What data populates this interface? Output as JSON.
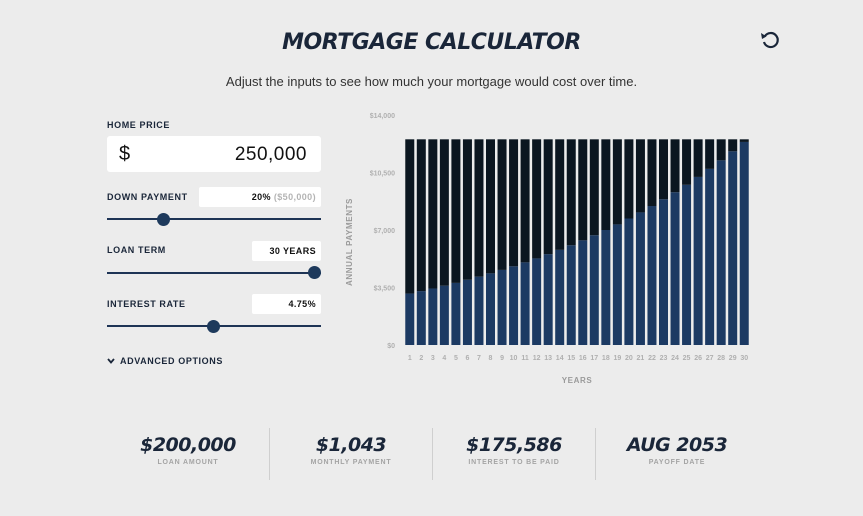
{
  "header": {
    "title": "MORTGAGE CALCULATOR",
    "subtitle": "Adjust the inputs to see how much your mortgage would cost over time.",
    "reset_icon": "reset-icon"
  },
  "inputs": {
    "home_price": {
      "label": "HOME PRICE",
      "currency": "$",
      "value": "250,000"
    },
    "down_payment": {
      "label": "DOWN PAYMENT",
      "percent": "20%",
      "amount": "($50,000)",
      "slider_fraction": 0.2
    },
    "loan_term": {
      "label": "LOAN TERM",
      "value": "30 YEARS",
      "slider_fraction": 1.0
    },
    "interest_rate": {
      "label": "INTEREST RATE",
      "value": "4.75%",
      "slider_fraction": 0.5
    }
  },
  "advanced": {
    "label": "ADVANCED OPTIONS",
    "icon": "chevron-down-icon"
  },
  "chart_data": {
    "type": "bar",
    "stacked": true,
    "ylabel": "ANNUAL PAYMENTS",
    "xlabel": "YEARS",
    "ylim": [
      0,
      14000
    ],
    "y_ticks": [
      "$0",
      "$3,500",
      "$7,000",
      "$10,500",
      "$14,000"
    ],
    "y_tick_values": [
      0,
      3500,
      7000,
      10500,
      14000
    ],
    "categories": [
      "1",
      "2",
      "3",
      "4",
      "5",
      "6",
      "7",
      "8",
      "9",
      "10",
      "11",
      "12",
      "13",
      "14",
      "15",
      "16",
      "17",
      "18",
      "19",
      "20",
      "21",
      "22",
      "23",
      "24",
      "25",
      "26",
      "27",
      "28",
      "29",
      "30"
    ],
    "series": [
      {
        "color": "#1c3a63",
        "values": [
          3130,
          3280,
          3440,
          3610,
          3780,
          3970,
          4160,
          4360,
          4570,
          4790,
          5030,
          5270,
          5530,
          5790,
          6070,
          6370,
          6680,
          7000,
          7340,
          7700,
          8070,
          8460,
          8870,
          9300,
          9750,
          10230,
          10720,
          11240,
          11790,
          12360
        ]
      },
      {
        "color": "#0b1620",
        "values": [
          9390,
          9240,
          9080,
          8910,
          8740,
          8550,
          8360,
          8160,
          7950,
          7730,
          7490,
          7250,
          6990,
          6730,
          6450,
          6150,
          5840,
          5520,
          5180,
          4820,
          4450,
          4060,
          3650,
          3220,
          2770,
          2290,
          1800,
          1280,
          730,
          160
        ]
      }
    ],
    "grid": false
  },
  "summary": [
    {
      "value": "$200,000",
      "label": "LOAN AMOUNT"
    },
    {
      "value": "$1,043",
      "label": "MONTHLY PAYMENT"
    },
    {
      "value": "$175,586",
      "label": "INTEREST TO BE PAID"
    },
    {
      "value": "AUG 2053",
      "label": "PAYOFF DATE"
    }
  ]
}
